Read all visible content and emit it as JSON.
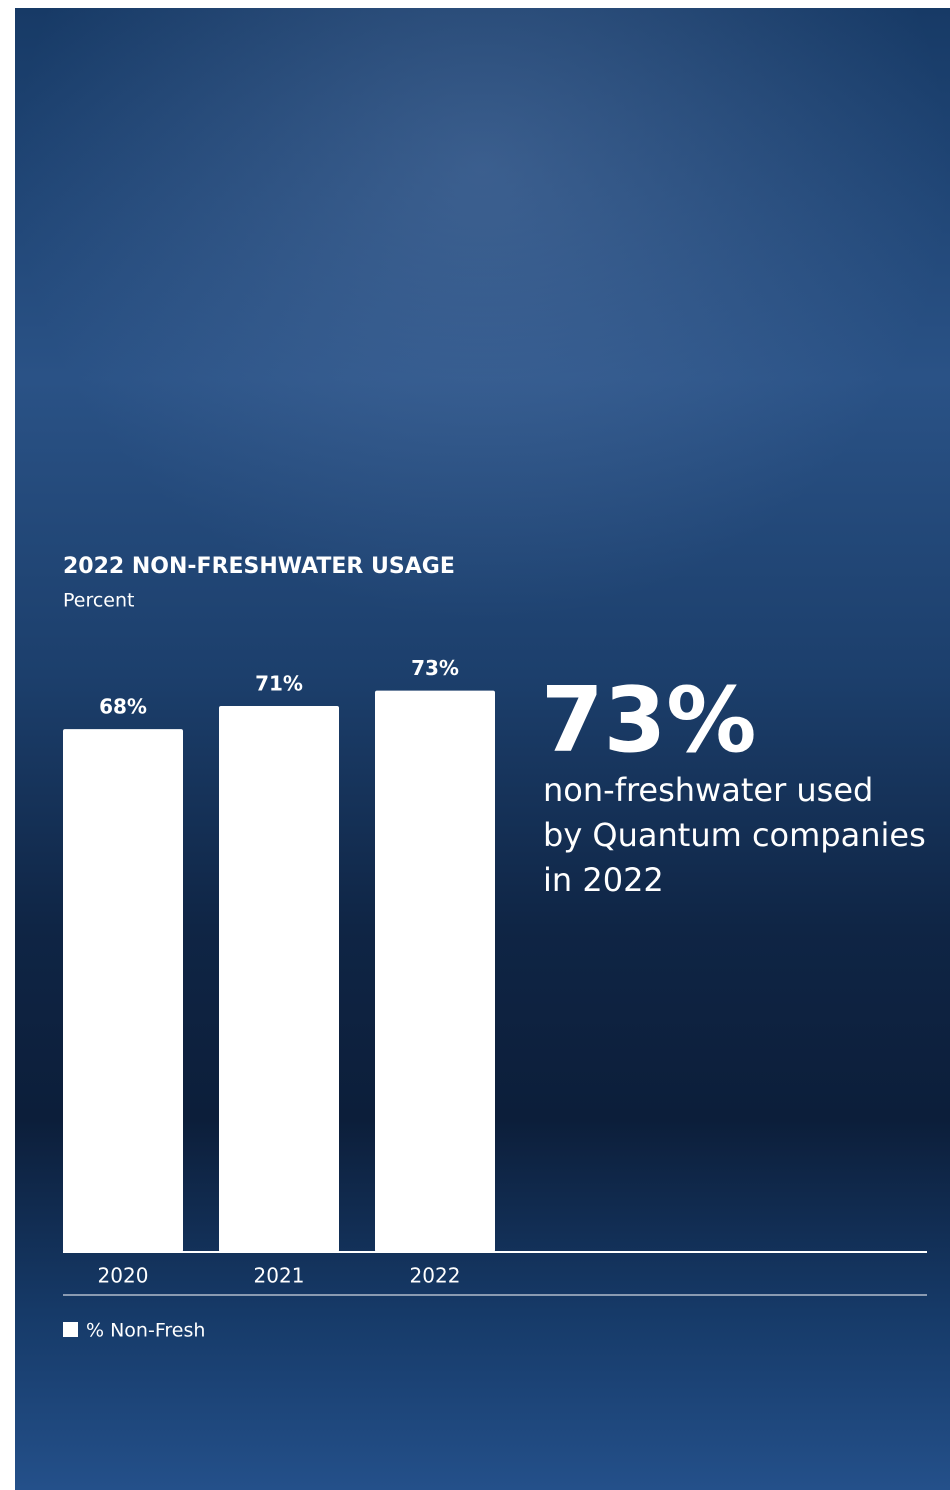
{
  "chart_data": {
    "type": "bar",
    "title": "2022 NON-FRESHWATER USAGE",
    "subtitle": "Percent",
    "categories": [
      "2020",
      "2021",
      "2022"
    ],
    "series": [
      {
        "name": "% Non-Fresh",
        "color": "#ffffff",
        "values": [
          68,
          71,
          73
        ],
        "value_labels": [
          "68%",
          "71%",
          "73%"
        ]
      }
    ],
    "ylim": [
      0,
      100
    ],
    "annotation": {
      "headline": "73%",
      "lines": [
        "non-freshwater used",
        "by Quantum companies",
        "in 2022"
      ]
    }
  }
}
